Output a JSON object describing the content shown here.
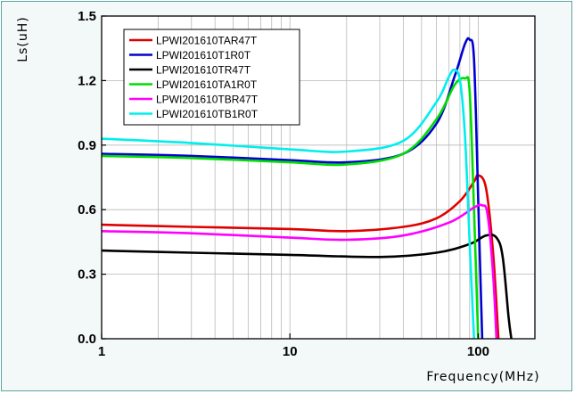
{
  "chart_data": {
    "type": "line",
    "title": "",
    "xlabel": "Frequency(MHz)",
    "ylabel": "Ls(uH)",
    "xscale": "log",
    "xlim": [
      1,
      200
    ],
    "ylim": [
      0.0,
      1.5
    ],
    "x_ticks": [
      1,
      10,
      100
    ],
    "x_tick_labels": [
      "1",
      "10",
      "100"
    ],
    "y_ticks": [
      0.0,
      0.3,
      0.6,
      0.9,
      1.2,
      1.5
    ],
    "y_tick_labels": [
      "0.0",
      "0.3",
      "0.6",
      "0.9",
      "1.2",
      "1.5"
    ],
    "grid": "log-minor vertical, major horizontal",
    "legend_position": "top-left",
    "series": [
      {
        "name": "LPWI201610TAR47T",
        "color": "#e00000",
        "x": [
          1,
          3,
          10,
          20,
          40,
          60,
          80,
          95,
          100,
          110,
          120,
          128
        ],
        "y": [
          0.53,
          0.52,
          0.51,
          0.5,
          0.52,
          0.56,
          0.64,
          0.73,
          0.76,
          0.7,
          0.4,
          0.0
        ]
      },
      {
        "name": "LPWI201610T1R0T",
        "color": "#0000d0",
        "x": [
          1,
          3,
          10,
          20,
          40,
          60,
          75,
          85,
          90,
          95,
          100,
          105
        ],
        "y": [
          0.86,
          0.85,
          0.83,
          0.82,
          0.86,
          1.0,
          1.22,
          1.37,
          1.39,
          1.3,
          0.65,
          0.0
        ]
      },
      {
        "name": "LPWI201610TR47T",
        "color": "#000000",
        "x": [
          1,
          3,
          10,
          30,
          60,
          90,
          110,
          125,
          135,
          145,
          150
        ],
        "y": [
          0.41,
          0.4,
          0.39,
          0.38,
          0.4,
          0.44,
          0.48,
          0.47,
          0.38,
          0.1,
          0.0
        ]
      },
      {
        "name": "LPWI201610TA1R0T",
        "color": "#00dd00",
        "x": [
          1,
          3,
          10,
          20,
          40,
          60,
          75,
          85,
          90,
          95,
          100
        ],
        "y": [
          0.85,
          0.84,
          0.82,
          0.81,
          0.86,
          1.02,
          1.18,
          1.21,
          1.15,
          0.6,
          0.0
        ]
      },
      {
        "name": "LPWI201610TBR47T",
        "color": "#ff00ff",
        "x": [
          1,
          3,
          10,
          20,
          40,
          70,
          95,
          105,
          112,
          120,
          125
        ],
        "y": [
          0.5,
          0.49,
          0.47,
          0.46,
          0.48,
          0.54,
          0.61,
          0.62,
          0.58,
          0.3,
          0.0
        ]
      },
      {
        "name": "LPWI201610TB1R0T",
        "color": "#00eeee",
        "x": [
          1,
          3,
          10,
          20,
          40,
          60,
          70,
          75,
          80,
          85,
          90,
          95
        ],
        "y": [
          0.93,
          0.91,
          0.88,
          0.87,
          0.92,
          1.1,
          1.22,
          1.25,
          1.2,
          0.95,
          0.45,
          0.0
        ]
      }
    ]
  }
}
